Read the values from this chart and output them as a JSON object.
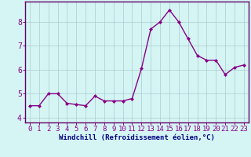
{
  "x": [
    0,
    1,
    2,
    3,
    4,
    5,
    6,
    7,
    8,
    9,
    10,
    11,
    12,
    13,
    14,
    15,
    16,
    17,
    18,
    19,
    20,
    21,
    22,
    23
  ],
  "y": [
    4.5,
    4.5,
    5.0,
    5.0,
    4.6,
    4.55,
    4.5,
    4.9,
    4.7,
    4.7,
    4.7,
    4.8,
    6.05,
    7.7,
    8.0,
    8.5,
    8.0,
    7.3,
    6.6,
    6.4,
    6.4,
    5.8,
    6.1,
    6.2
  ],
  "line_color": "#880088",
  "marker": "D",
  "marker_size": 2.0,
  "linewidth": 1.0,
  "background_color": "#d5f5f5",
  "grid_color": "#aacccc",
  "xlabel": "Windchill (Refroidissement éolien,°C)",
  "xlabel_color": "#000080",
  "xlabel_fontsize": 6.5,
  "ylabel_ticks": [
    4,
    5,
    6,
    7,
    8
  ],
  "xticks": [
    0,
    1,
    2,
    3,
    4,
    5,
    6,
    7,
    8,
    9,
    10,
    11,
    12,
    13,
    14,
    15,
    16,
    17,
    18,
    19,
    20,
    21,
    22,
    23
  ],
  "xlim": [
    -0.5,
    23.5
  ],
  "ylim": [
    3.8,
    8.85
  ],
  "tick_color": "#880088",
  "tick_labelsize": 6.5,
  "spine_color": "#660066",
  "border_color": "#660066"
}
